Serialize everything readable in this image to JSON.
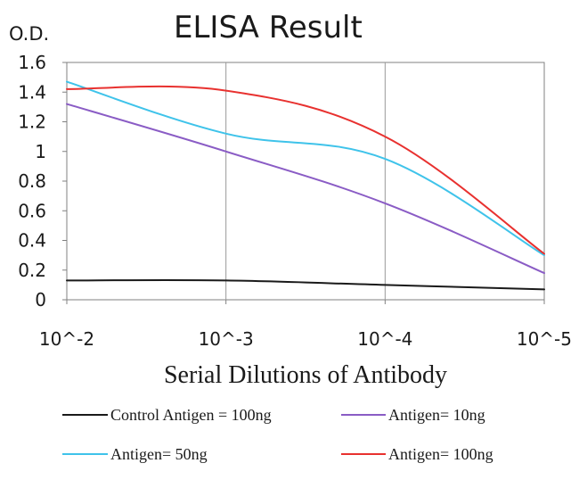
{
  "chart_data": {
    "type": "line",
    "title": "ELISA Result",
    "ylabel": "O.D.",
    "xlabel": "Serial Dilutions of Antibody",
    "categories": [
      "10^-2",
      "10^-3",
      "10^-4",
      "10^-5"
    ],
    "yticks": [
      "0",
      "0.2",
      "0.4",
      "0.6",
      "0.8",
      "1",
      "1.2",
      "1.4",
      "1.6"
    ],
    "ylim": [
      0,
      1.6
    ],
    "grid": "vertical lines at each dilution",
    "legend_position": "bottom",
    "series": [
      {
        "name": "Control Antigen = 100ng",
        "color": "#1a1a1a",
        "values": [
          0.13,
          0.13,
          0.1,
          0.07
        ]
      },
      {
        "name": "Antigen= 10ng",
        "color": "#8a5cc5",
        "values": [
          1.32,
          1.0,
          0.65,
          0.18
        ]
      },
      {
        "name": "Antigen= 50ng",
        "color": "#3fc3ea",
        "values": [
          1.47,
          1.12,
          0.95,
          0.3
        ]
      },
      {
        "name": "Antigen= 100ng",
        "color": "#e8312f",
        "values": [
          1.42,
          1.41,
          1.1,
          0.31
        ]
      }
    ]
  }
}
